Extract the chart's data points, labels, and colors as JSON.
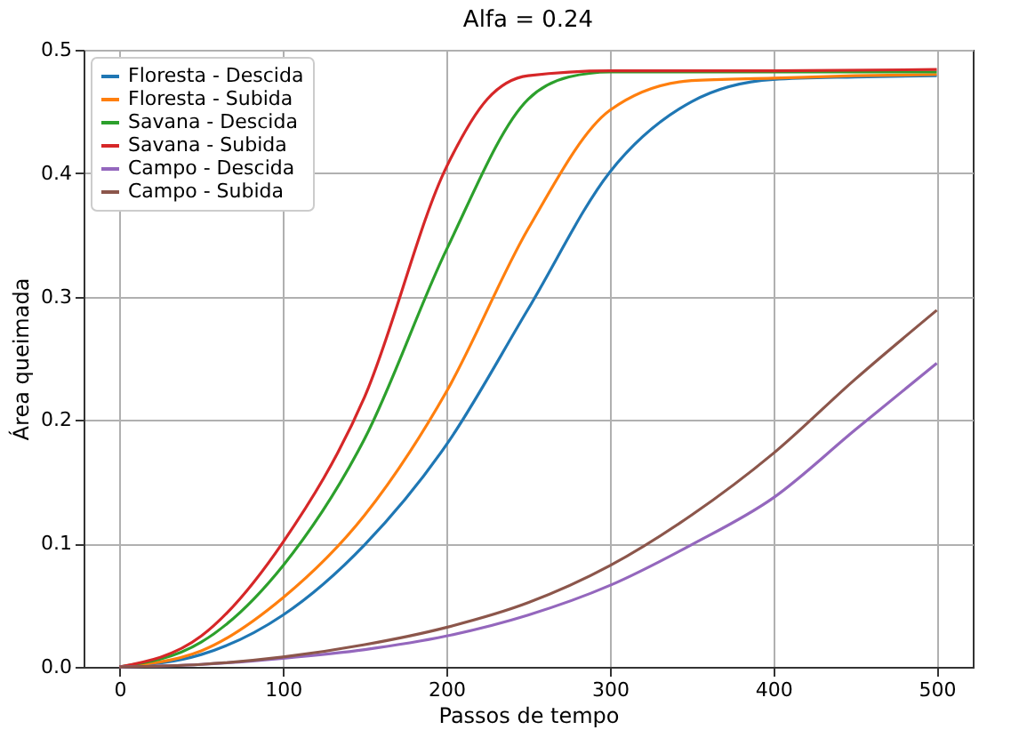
{
  "chart_data": {
    "type": "line",
    "title": "Alfa = 0.24",
    "xlabel": "Passos de tempo",
    "ylabel": "Área queimada",
    "xlim": [
      -22,
      522
    ],
    "ylim": [
      0,
      0.5
    ],
    "xticks": [
      0,
      100,
      200,
      300,
      400,
      500
    ],
    "yticks": [
      {
        "value": 0,
        "label": "0.0"
      },
      0.1,
      0.2,
      0.3,
      0.4,
      0.5
    ],
    "grid": true,
    "legend": "top left",
    "marker": "none",
    "line_style": "solid",
    "series": [
      {
        "name": "Floresta - Descida",
        "color": "#1f77b4",
        "x": [
          0,
          50,
          100,
          150,
          200,
          250,
          300,
          350,
          400,
          450,
          500
        ],
        "values": [
          0,
          0.01,
          0.042,
          0.099,
          0.18,
          0.29,
          0.401,
          0.458,
          0.476,
          0.478,
          0.479
        ]
      },
      {
        "name": "Floresta - Subida",
        "color": "#ff7f0e",
        "x": [
          0,
          50,
          100,
          150,
          200,
          250,
          300,
          350,
          400,
          450,
          500
        ],
        "values": [
          0,
          0.013,
          0.056,
          0.123,
          0.223,
          0.355,
          0.451,
          0.475,
          0.477,
          0.479,
          0.48
        ]
      },
      {
        "name": "Savana - Descida",
        "color": "#2ca02c",
        "x": [
          0,
          50,
          100,
          150,
          200,
          250,
          275,
          300,
          400,
          500
        ],
        "values": [
          0,
          0.02,
          0.082,
          0.185,
          0.338,
          0.46,
          0.478,
          0.482,
          0.482,
          0.482
        ]
      },
      {
        "name": "Savana - Subida",
        "color": "#d62728",
        "x": [
          0,
          50,
          100,
          150,
          200,
          225,
          250,
          300,
          400,
          500
        ],
        "values": [
          0,
          0.025,
          0.101,
          0.219,
          0.405,
          0.46,
          0.479,
          0.483,
          0.483,
          0.484
        ]
      },
      {
        "name": "Campo - Descida",
        "color": "#9467bd",
        "x": [
          0,
          50,
          100,
          150,
          200,
          250,
          300,
          350,
          400,
          450,
          500
        ],
        "values": [
          0,
          0.002,
          0.007,
          0.014,
          0.025,
          0.042,
          0.066,
          0.099,
          0.137,
          0.192,
          0.246
        ]
      },
      {
        "name": "Campo - Subida",
        "color": "#8c564b",
        "x": [
          0,
          50,
          100,
          150,
          200,
          250,
          300,
          350,
          400,
          450,
          500
        ],
        "values": [
          0,
          0.002,
          0.008,
          0.018,
          0.032,
          0.052,
          0.082,
          0.123,
          0.173,
          0.233,
          0.289
        ]
      }
    ]
  }
}
